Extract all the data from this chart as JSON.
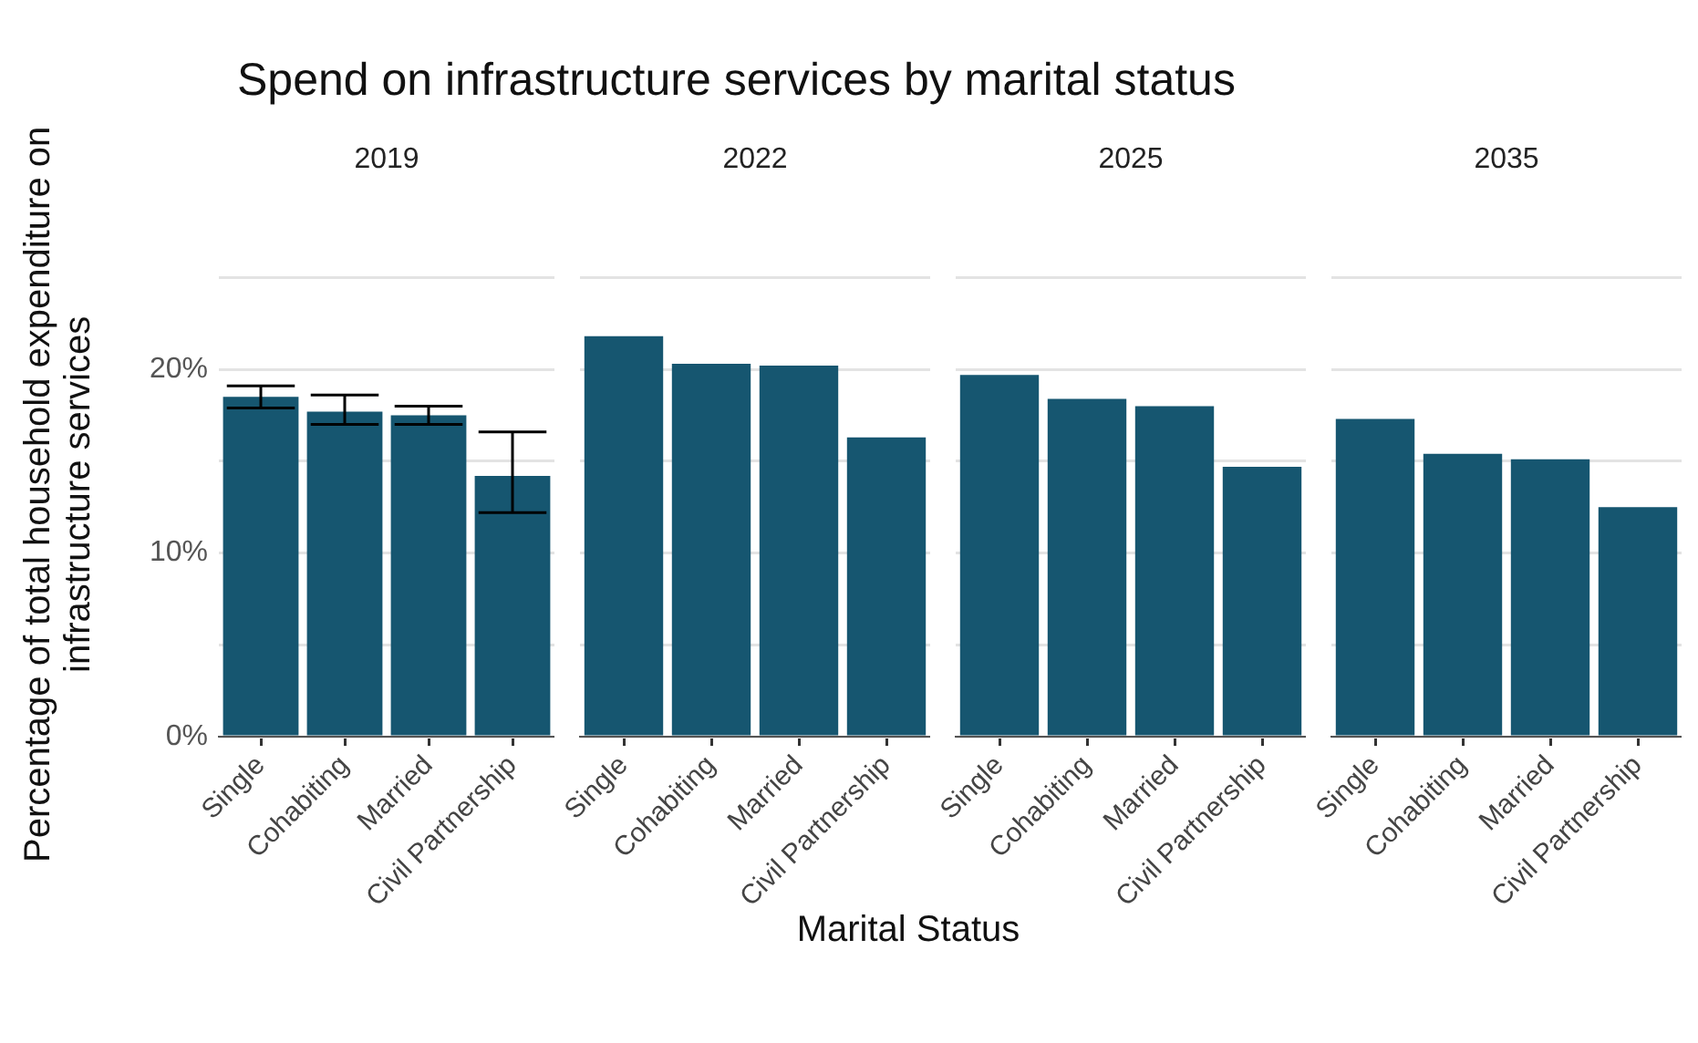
{
  "chart_data": [
    {
      "type": "bar",
      "title": "Spend on infrastructure services by marital status",
      "subtitle": "2019",
      "ylabel": "Percentage of total household expenditure on infrastructure services",
      "categories": [
        "Single",
        "Cohabiting",
        "Married",
        "Civil Partnership"
      ],
      "values": [
        18.5,
        17.7,
        17.5,
        14.2
      ],
      "errors": [
        [
          17.9,
          19.1
        ],
        [
          17.0,
          18.6
        ],
        [
          17.0,
          18.0
        ],
        [
          12.2,
          16.6
        ]
      ],
      "color": "#165670",
      "ylim": [
        0,
        25
      ],
      "yticks": [
        {
          "value": 0,
          "label": "0%"
        },
        {
          "value": 5,
          "label": null
        },
        {
          "value": 10,
          "label": "10%"
        },
        {
          "value": 15,
          "label": null
        },
        {
          "value": 20,
          "label": "20%"
        },
        {
          "value": 25,
          "label": null
        }
      ],
      "grid": "y"
    },
    {
      "type": "bar",
      "subtitle": "2022",
      "xlabel": "Marital Status",
      "categories": [
        "Single",
        "Cohabiting",
        "Married",
        "Civil Partnership"
      ],
      "values": [
        21.8,
        20.3,
        20.2,
        16.3
      ],
      "color": "#165670",
      "ylim": [
        0,
        25
      ],
      "yticks": [
        {
          "value": 0,
          "label": null
        },
        {
          "value": 5,
          "label": null
        },
        {
          "value": 10,
          "label": null
        },
        {
          "value": 15,
          "label": null
        },
        {
          "value": 20,
          "label": null
        },
        {
          "value": 25,
          "label": null
        }
      ],
      "grid": "y",
      "tick_labels": "x"
    },
    {
      "type": "bar",
      "subtitle": "2025",
      "categories": [
        "Single",
        "Cohabiting",
        "Married",
        "Civil Partnership"
      ],
      "values": [
        19.7,
        18.4,
        18.0,
        14.7
      ],
      "color": "#165670",
      "ylim": [
        0,
        25
      ],
      "yticks": [
        {
          "value": 0,
          "label": null
        },
        {
          "value": 5,
          "label": null
        },
        {
          "value": 10,
          "label": null
        },
        {
          "value": 15,
          "label": null
        },
        {
          "value": 20,
          "label": null
        },
        {
          "value": 25,
          "label": null
        }
      ],
      "grid": "y",
      "tick_labels": "x"
    },
    {
      "type": "bar",
      "subtitle": "2035",
      "categories": [
        "Single",
        "Cohabiting",
        "Married",
        "Civil Partnership"
      ],
      "values": [
        17.3,
        15.4,
        15.1,
        12.5
      ],
      "color": "#165670",
      "ylim": [
        0,
        25
      ],
      "yticks": [
        {
          "value": 0,
          "label": null
        },
        {
          "value": 5,
          "label": null
        },
        {
          "value": 10,
          "label": null
        },
        {
          "value": 15,
          "label": null
        },
        {
          "value": 20,
          "label": null
        },
        {
          "value": 25,
          "label": null
        }
      ],
      "grid": "y",
      "tick_labels": "x"
    }
  ]
}
